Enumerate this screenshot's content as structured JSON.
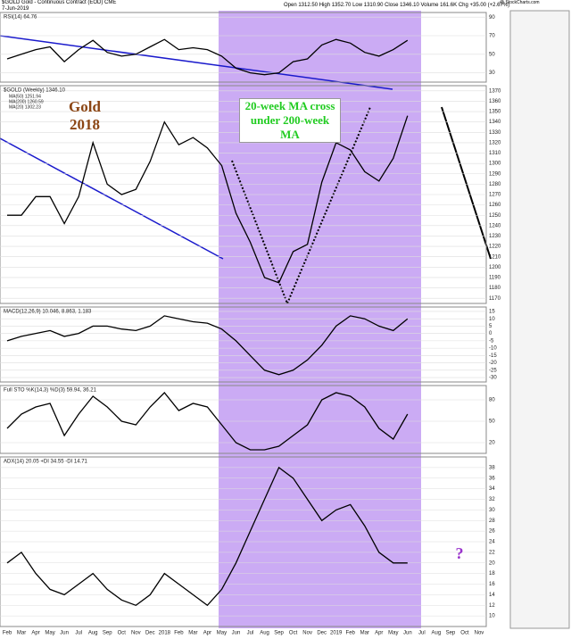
{
  "header": {
    "symbol": "$GOLD Gold - Continuous Contract (EOD) CME",
    "date": "7-Jun-2019",
    "quote": "Open 1312.50 High 1352.70 Low 1310.90 Close 1346.10 Volume 161.6K Chg +35.00 (+2.67%)",
    "source": "@ StockCharts.com"
  },
  "annotations": [
    "Gold 2018",
    "20-week MA cross under 200-week MA",
    "?"
  ],
  "chart_data": [
    {
      "type": "line",
      "title": "RSI(14) 64.76",
      "color": "#000000",
      "ylim": [
        20,
        95
      ],
      "yticks": [
        30,
        50,
        70,
        90
      ],
      "values": [
        45,
        50,
        55,
        58,
        42,
        55,
        65,
        52,
        48,
        50,
        58,
        66,
        55,
        57,
        55,
        48,
        35,
        30,
        28,
        30,
        42,
        45,
        60,
        66,
        62,
        52,
        48,
        55,
        65,
        null,
        null,
        null,
        null,
        null
      ]
    },
    {
      "type": "line",
      "title": "$GOLD (Weekly) 1346.10",
      "legend": [
        "MA(50) 1251.94",
        "MA(200) 1260.59",
        "MA(20) 1302.23"
      ],
      "color": "#000000",
      "categories": [
        "Feb",
        "Mar",
        "Apr",
        "May",
        "Jun",
        "Jul",
        "Aug",
        "Sep",
        "Oct",
        "Nov",
        "Dec",
        "2018",
        "Feb",
        "Mar",
        "Apr",
        "May",
        "Jun",
        "Jul",
        "Aug",
        "Sep",
        "Oct",
        "Nov",
        "Dec",
        "2019",
        "Feb",
        "Mar",
        "Apr",
        "May",
        "Jun",
        "Jul",
        "Aug",
        "Sep",
        "Oct",
        "Nov"
      ],
      "ylim": [
        1165,
        1375
      ],
      "yticks": [
        1170,
        1180,
        1190,
        1200,
        1210,
        1220,
        1230,
        1240,
        1250,
        1260,
        1270,
        1280,
        1290,
        1300,
        1310,
        1320,
        1330,
        1340,
        1350,
        1360,
        1370
      ],
      "values": [
        1250,
        1250,
        1268,
        1268,
        1242,
        1268,
        1320,
        1280,
        1270,
        1275,
        1302,
        1340,
        1318,
        1325,
        1315,
        1298,
        1252,
        1224,
        1190,
        1185,
        1215,
        1222,
        1282,
        1320,
        1313,
        1292,
        1283,
        1305,
        1346,
        null,
        null,
        null,
        null,
        null
      ]
    },
    {
      "type": "line",
      "title": "MACD(12,26,9) 10.046, 8.863, 1.183",
      "color": "#000000",
      "ylim": [
        -33,
        18
      ],
      "yticks": [
        15,
        10,
        5,
        0,
        -5,
        -10,
        -15,
        -20,
        -25,
        -30
      ],
      "values": [
        -5,
        -2,
        0,
        2,
        -2,
        0,
        5,
        5,
        3,
        2,
        5,
        12,
        10,
        8,
        7,
        3,
        -5,
        -15,
        -25,
        -28,
        -25,
        -18,
        -8,
        5,
        12,
        10,
        5,
        2,
        10,
        null,
        null,
        null,
        null,
        null
      ]
    },
    {
      "type": "line",
      "title": "Full STO %K(14,3) %D(3) 59.94, 36.21",
      "color": "#000000",
      "ylim": [
        5,
        100
      ],
      "yticks": [
        20,
        50,
        80
      ],
      "values": [
        40,
        60,
        70,
        75,
        30,
        60,
        85,
        70,
        50,
        45,
        70,
        90,
        65,
        75,
        70,
        45,
        20,
        10,
        10,
        15,
        30,
        45,
        80,
        90,
        85,
        70,
        40,
        25,
        60,
        null,
        null,
        null,
        null,
        null
      ]
    },
    {
      "type": "line",
      "title": "ADX(14) 20.05 +DI 34.55 -DI 14.71",
      "color": "#000000",
      "ylim": [
        8,
        40
      ],
      "yticks": [
        10,
        12,
        14,
        16,
        18,
        20,
        22,
        24,
        26,
        28,
        30,
        32,
        34,
        36,
        38
      ],
      "values": [
        20,
        22,
        18,
        15,
        14,
        16,
        18,
        15,
        13,
        12,
        14,
        18,
        16,
        14,
        12,
        15,
        20,
        26,
        32,
        38,
        36,
        32,
        28,
        30,
        31,
        27,
        22,
        20,
        20,
        null,
        null,
        null,
        null,
        null
      ]
    }
  ]
}
